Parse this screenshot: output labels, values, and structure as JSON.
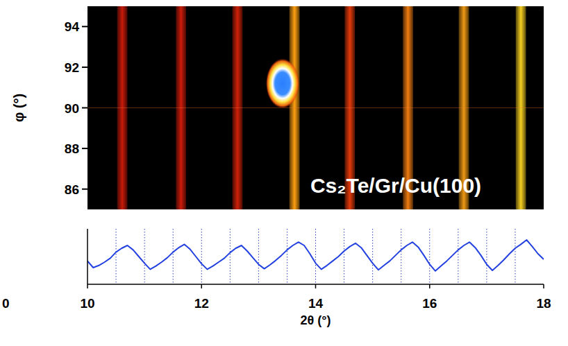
{
  "chart_data": [
    {
      "type": "heatmap",
      "annotation": "Cs₂Te/Gr/Cu(100)",
      "ylabel": "φ (°)",
      "xlim": [
        10,
        18
      ],
      "ylim": [
        85,
        95
      ],
      "yticks": [
        86,
        88,
        90,
        92,
        94
      ],
      "tick_labels": "y",
      "bands": {
        "x": [
          10.61,
          11.64,
          12.63,
          13.63,
          14.6,
          15.62,
          16.6,
          17.6
        ],
        "width": 0.18,
        "colors": [
          "#c81a0a",
          "#cc1c0a",
          "#d02008",
          "#ffa010",
          "#e43a0a",
          "#f07c10",
          "#f09a14",
          "#f8d020"
        ]
      },
      "spot": {
        "x": 13.42,
        "y": 91.2
      }
    },
    {
      "type": "line",
      "xlabel": "2θ (°)",
      "xlim": [
        10,
        18
      ],
      "ylim": [
        0,
        1
      ],
      "xticks": [
        10,
        12,
        14,
        16,
        18
      ],
      "x_minor_ticks": [
        10.5,
        11,
        11.5,
        12,
        12.5,
        13,
        13.5,
        14,
        14.5,
        15,
        15.5,
        16,
        16.5,
        17,
        17.5
      ],
      "tick_labels": "x",
      "color": "#2340e0",
      "annotations": [
        "0"
      ],
      "x": [
        10.0,
        10.1,
        10.2,
        10.3,
        10.4,
        10.5,
        10.6,
        10.7,
        10.8,
        10.9,
        11.0,
        11.1,
        11.2,
        11.3,
        11.4,
        11.5,
        11.6,
        11.7,
        11.8,
        11.9,
        12.0,
        12.1,
        12.2,
        12.3,
        12.4,
        12.5,
        12.6,
        12.7,
        12.8,
        12.9,
        13.0,
        13.1,
        13.2,
        13.3,
        13.4,
        13.5,
        13.6,
        13.7,
        13.8,
        13.9,
        14.0,
        14.1,
        14.2,
        14.3,
        14.4,
        14.5,
        14.6,
        14.7,
        14.8,
        14.9,
        15.0,
        15.1,
        15.2,
        15.3,
        15.4,
        15.5,
        15.6,
        15.7,
        15.8,
        15.9,
        16.0,
        16.1,
        16.2,
        16.3,
        16.4,
        16.5,
        16.6,
        16.7,
        16.8,
        16.9,
        17.0,
        17.1,
        17.2,
        17.3,
        17.4,
        17.5,
        17.6,
        17.7,
        17.8,
        17.9,
        18.0
      ],
      "values": [
        0.42,
        0.3,
        0.34,
        0.4,
        0.47,
        0.58,
        0.65,
        0.7,
        0.62,
        0.5,
        0.38,
        0.27,
        0.33,
        0.4,
        0.48,
        0.58,
        0.66,
        0.72,
        0.63,
        0.5,
        0.37,
        0.27,
        0.33,
        0.4,
        0.47,
        0.57,
        0.65,
        0.7,
        0.6,
        0.48,
        0.36,
        0.28,
        0.35,
        0.43,
        0.52,
        0.62,
        0.7,
        0.76,
        0.7,
        0.55,
        0.38,
        0.27,
        0.34,
        0.42,
        0.5,
        0.6,
        0.68,
        0.74,
        0.66,
        0.52,
        0.38,
        0.26,
        0.34,
        0.42,
        0.52,
        0.62,
        0.7,
        0.76,
        0.67,
        0.52,
        0.36,
        0.24,
        0.33,
        0.42,
        0.52,
        0.62,
        0.7,
        0.76,
        0.66,
        0.52,
        0.36,
        0.25,
        0.34,
        0.44,
        0.55,
        0.65,
        0.72,
        0.8,
        0.68,
        0.55,
        0.45
      ]
    }
  ]
}
